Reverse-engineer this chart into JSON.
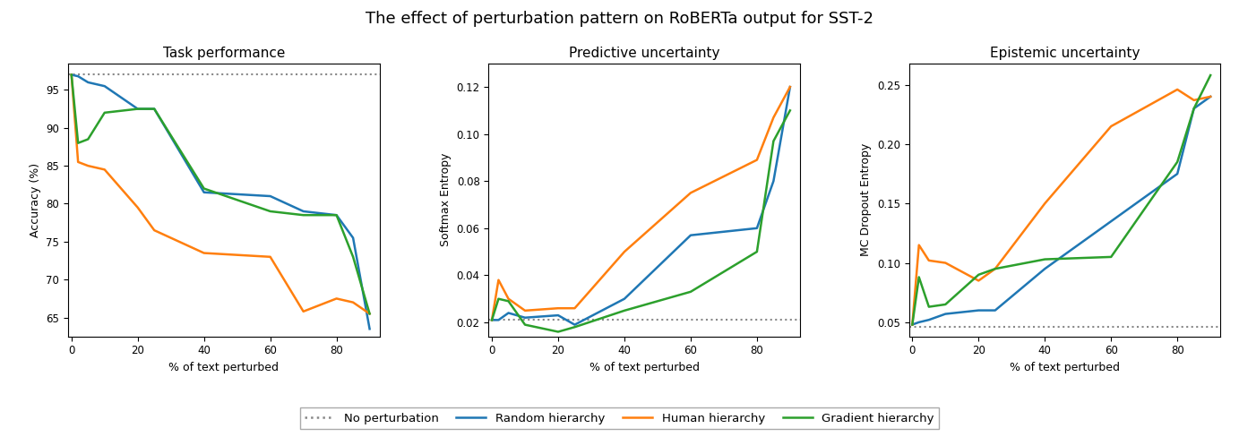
{
  "title": "The effect of perturbation pattern on RoBERTa output for SST-2",
  "subplot_titles": [
    "Task performance",
    "Predictive uncertainty",
    "Epistemic uncertainty"
  ],
  "xlabel": "% of text perturbed",
  "colors": {
    "random": "#1f77b4",
    "human": "#ff7f0e",
    "gradient": "#2ca02c",
    "no_pert": "#888888"
  },
  "legend_labels": [
    "No perturbation",
    "Random hierarchy",
    "Human hierarchy",
    "Gradient hierarchy"
  ],
  "task_x": [
    0,
    2,
    5,
    10,
    20,
    25,
    40,
    60,
    70,
    80,
    85,
    90
  ],
  "task_random": [
    97.0,
    96.8,
    96.0,
    95.5,
    92.5,
    92.5,
    81.5,
    81.0,
    79.0,
    78.5,
    75.5,
    63.5
  ],
  "task_human": [
    97.0,
    85.5,
    85.0,
    84.5,
    79.5,
    76.5,
    73.5,
    73.0,
    65.8,
    67.5,
    67.0,
    65.5
  ],
  "task_gradient": [
    97.0,
    88.0,
    88.5,
    92.0,
    92.5,
    92.5,
    82.0,
    79.0,
    78.5,
    78.5,
    73.0,
    65.5
  ],
  "task_no_pert": 97.0,
  "task_ylim": [
    62.5,
    98.5
  ],
  "task_yticks": [
    65,
    70,
    75,
    80,
    85,
    90,
    95
  ],
  "task_xlim": [
    -1,
    93
  ],
  "task_xticks": [
    0,
    20,
    40,
    60,
    80
  ],
  "pred_x": [
    0,
    2,
    5,
    10,
    20,
    25,
    40,
    60,
    80,
    85,
    90
  ],
  "pred_random": [
    0.021,
    0.021,
    0.024,
    0.022,
    0.023,
    0.019,
    0.03,
    0.057,
    0.06,
    0.08,
    0.12
  ],
  "pred_human": [
    0.021,
    0.038,
    0.03,
    0.025,
    0.026,
    0.026,
    0.05,
    0.075,
    0.089,
    0.107,
    0.12
  ],
  "pred_gradient": [
    0.021,
    0.03,
    0.029,
    0.019,
    0.016,
    0.018,
    0.025,
    0.033,
    0.05,
    0.097,
    0.11
  ],
  "pred_no_pert": 0.021,
  "pred_ylim": [
    0.014,
    0.13
  ],
  "pred_yticks": [
    0.02,
    0.04,
    0.06,
    0.08,
    0.1,
    0.12
  ],
  "pred_xlim": [
    -1,
    93
  ],
  "pred_xticks": [
    0,
    20,
    40,
    60,
    80
  ],
  "epist_x": [
    0,
    2,
    5,
    10,
    20,
    25,
    40,
    60,
    80,
    85,
    90
  ],
  "epist_random": [
    0.048,
    0.05,
    0.052,
    0.057,
    0.06,
    0.06,
    0.095,
    0.135,
    0.175,
    0.23,
    0.24
  ],
  "epist_human": [
    0.048,
    0.115,
    0.102,
    0.1,
    0.085,
    0.095,
    0.15,
    0.215,
    0.246,
    0.237,
    0.24
  ],
  "epist_gradient": [
    0.048,
    0.088,
    0.063,
    0.065,
    0.09,
    0.095,
    0.103,
    0.105,
    0.185,
    0.23,
    0.258
  ],
  "epist_no_pert": 0.046,
  "epist_ylim": [
    0.038,
    0.268
  ],
  "epist_yticks": [
    0.05,
    0.1,
    0.15,
    0.2,
    0.25
  ],
  "epist_xlim": [
    -1,
    93
  ],
  "epist_xticks": [
    0,
    20,
    40,
    60,
    80
  ]
}
